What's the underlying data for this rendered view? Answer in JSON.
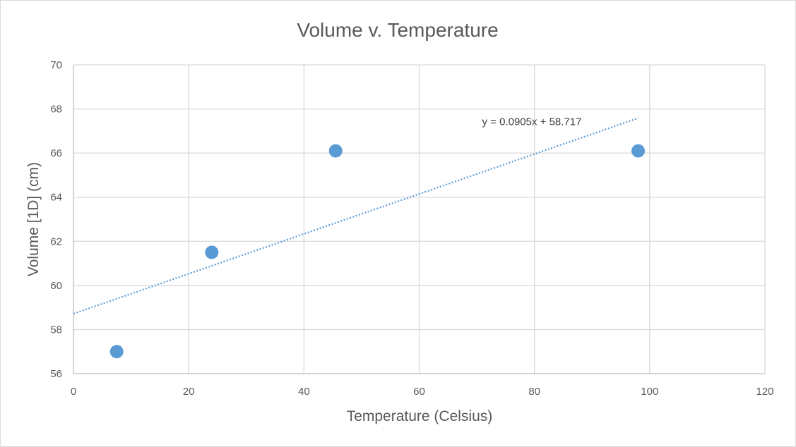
{
  "chart_data": {
    "type": "scatter",
    "title": "Volume v. Temperature",
    "xlabel": "Temperature (Celsius)",
    "ylabel": "Volume [1D] (cm)",
    "xlim": [
      0,
      120
    ],
    "ylim": [
      56,
      70
    ],
    "x_ticks": [
      0,
      20,
      40,
      60,
      80,
      100,
      120
    ],
    "y_ticks": [
      56,
      58,
      60,
      62,
      64,
      66,
      68,
      70
    ],
    "grid": true,
    "legend": "none",
    "series": [
      {
        "points": [
          {
            "x": 7.5,
            "y": 57.0
          },
          {
            "x": 24,
            "y": 61.5
          },
          {
            "x": 45.5,
            "y": 66.1
          },
          {
            "x": 98,
            "y": 66.1
          }
        ],
        "color": "#5b9bd5"
      }
    ],
    "trendline": {
      "type": "linear",
      "slope": 0.0905,
      "intercept": 58.717,
      "x_range": [
        0,
        98
      ],
      "color": "#5b9bd5",
      "style": "dotted",
      "label": "y = 0.0905x + 58.717"
    }
  }
}
